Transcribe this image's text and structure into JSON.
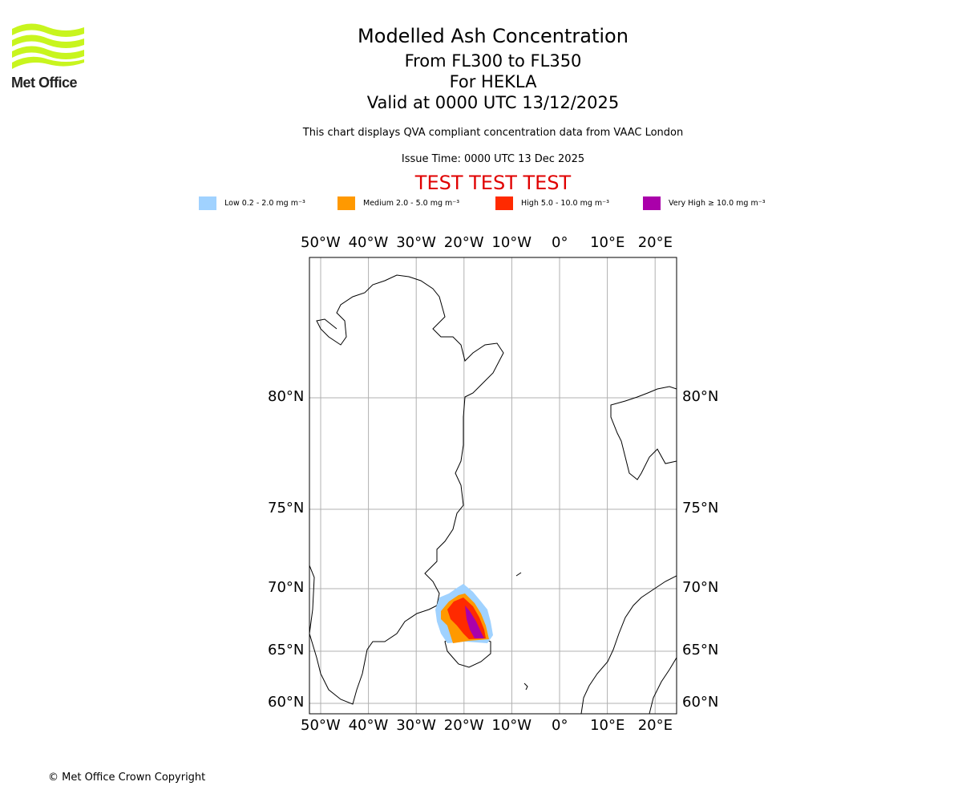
{
  "logo": {
    "text": "Met Office",
    "color": "#c8f51e"
  },
  "header": {
    "title": "Modelled Ash Concentration",
    "levels": "From FL300 to FL350",
    "volcano": "For HEKLA",
    "valid": "Valid at 0000 UTC 13/12/2025",
    "subtitle": "This chart displays QVA compliant concentration data from VAAC London",
    "issue": "Issue Time: 0000 UTC 13 Dec 2025",
    "test_banner": "TEST TEST TEST"
  },
  "legend": [
    {
      "label": "Low 0.2 - 2.0 mg m⁻³",
      "color": "#a0d2ff"
    },
    {
      "label": "Medium 2.0 - 5.0 mg m⁻³",
      "color": "#ff9900"
    },
    {
      "label": "High 5.0 - 10.0 mg m⁻³",
      "color": "#ff2a00"
    },
    {
      "label": "Very High ≥ 10.0 mg m⁻³",
      "color": "#aa00aa"
    }
  ],
  "chart_data": {
    "type": "map",
    "lon_ticks": [
      "50°W",
      "40°W",
      "30°W",
      "20°W",
      "10°W",
      "0°",
      "10°E",
      "20°E"
    ],
    "lon_values": [
      -50,
      -40,
      -30,
      -20,
      -10,
      0,
      10,
      20
    ],
    "lat_ticks": [
      "80°N",
      "75°N",
      "70°N",
      "65°N",
      "60°N"
    ],
    "lat_values": [
      80,
      75,
      70,
      65,
      60
    ],
    "grid": true,
    "plume": "Ash cloud north-west of Iceland, roughly 66–70°N, 25–14°W"
  },
  "footer": {
    "copyright": "© Met Office Crown Copyright"
  }
}
